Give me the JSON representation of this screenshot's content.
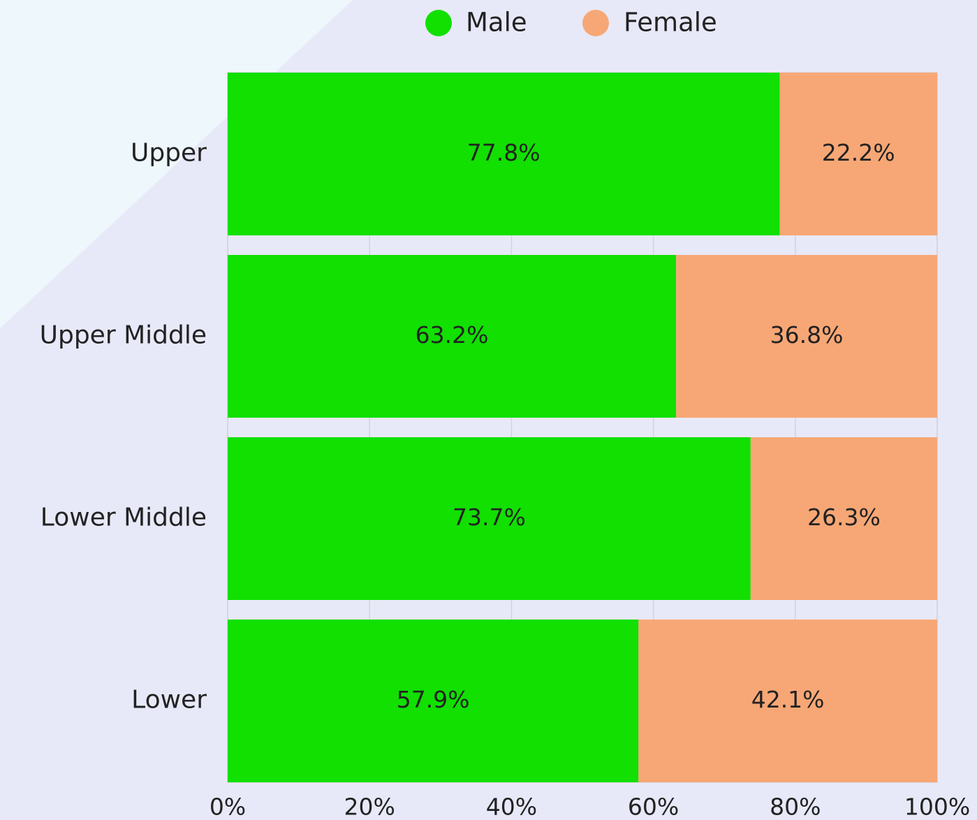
{
  "chart_data": {
    "type": "stacked-bar-horizontal",
    "categories": [
      "Upper",
      "Upper Middle",
      "Lower Middle",
      "Lower"
    ],
    "series": [
      {
        "name": "Male",
        "color": "#11e000",
        "values": [
          77.8,
          63.2,
          73.7,
          57.9
        ],
        "value_labels": [
          "77.8%",
          "63.2%",
          "73.7%",
          "57.9%"
        ]
      },
      {
        "name": "Female",
        "color": "#f7a775",
        "values": [
          22.2,
          36.8,
          26.3,
          42.1
        ],
        "value_labels": [
          "22.2%",
          "36.8%",
          "26.3%",
          "42.1%"
        ]
      }
    ],
    "xlim": [
      0,
      100
    ],
    "xticks": [
      {
        "value": 0,
        "label": "0%"
      },
      {
        "value": 20,
        "label": "20%"
      },
      {
        "value": 40,
        "label": "40%"
      },
      {
        "value": 60,
        "label": "60%"
      },
      {
        "value": 80,
        "label": "80%"
      },
      {
        "value": 100,
        "label": "100%"
      }
    ],
    "grid": true,
    "legend": "top"
  }
}
